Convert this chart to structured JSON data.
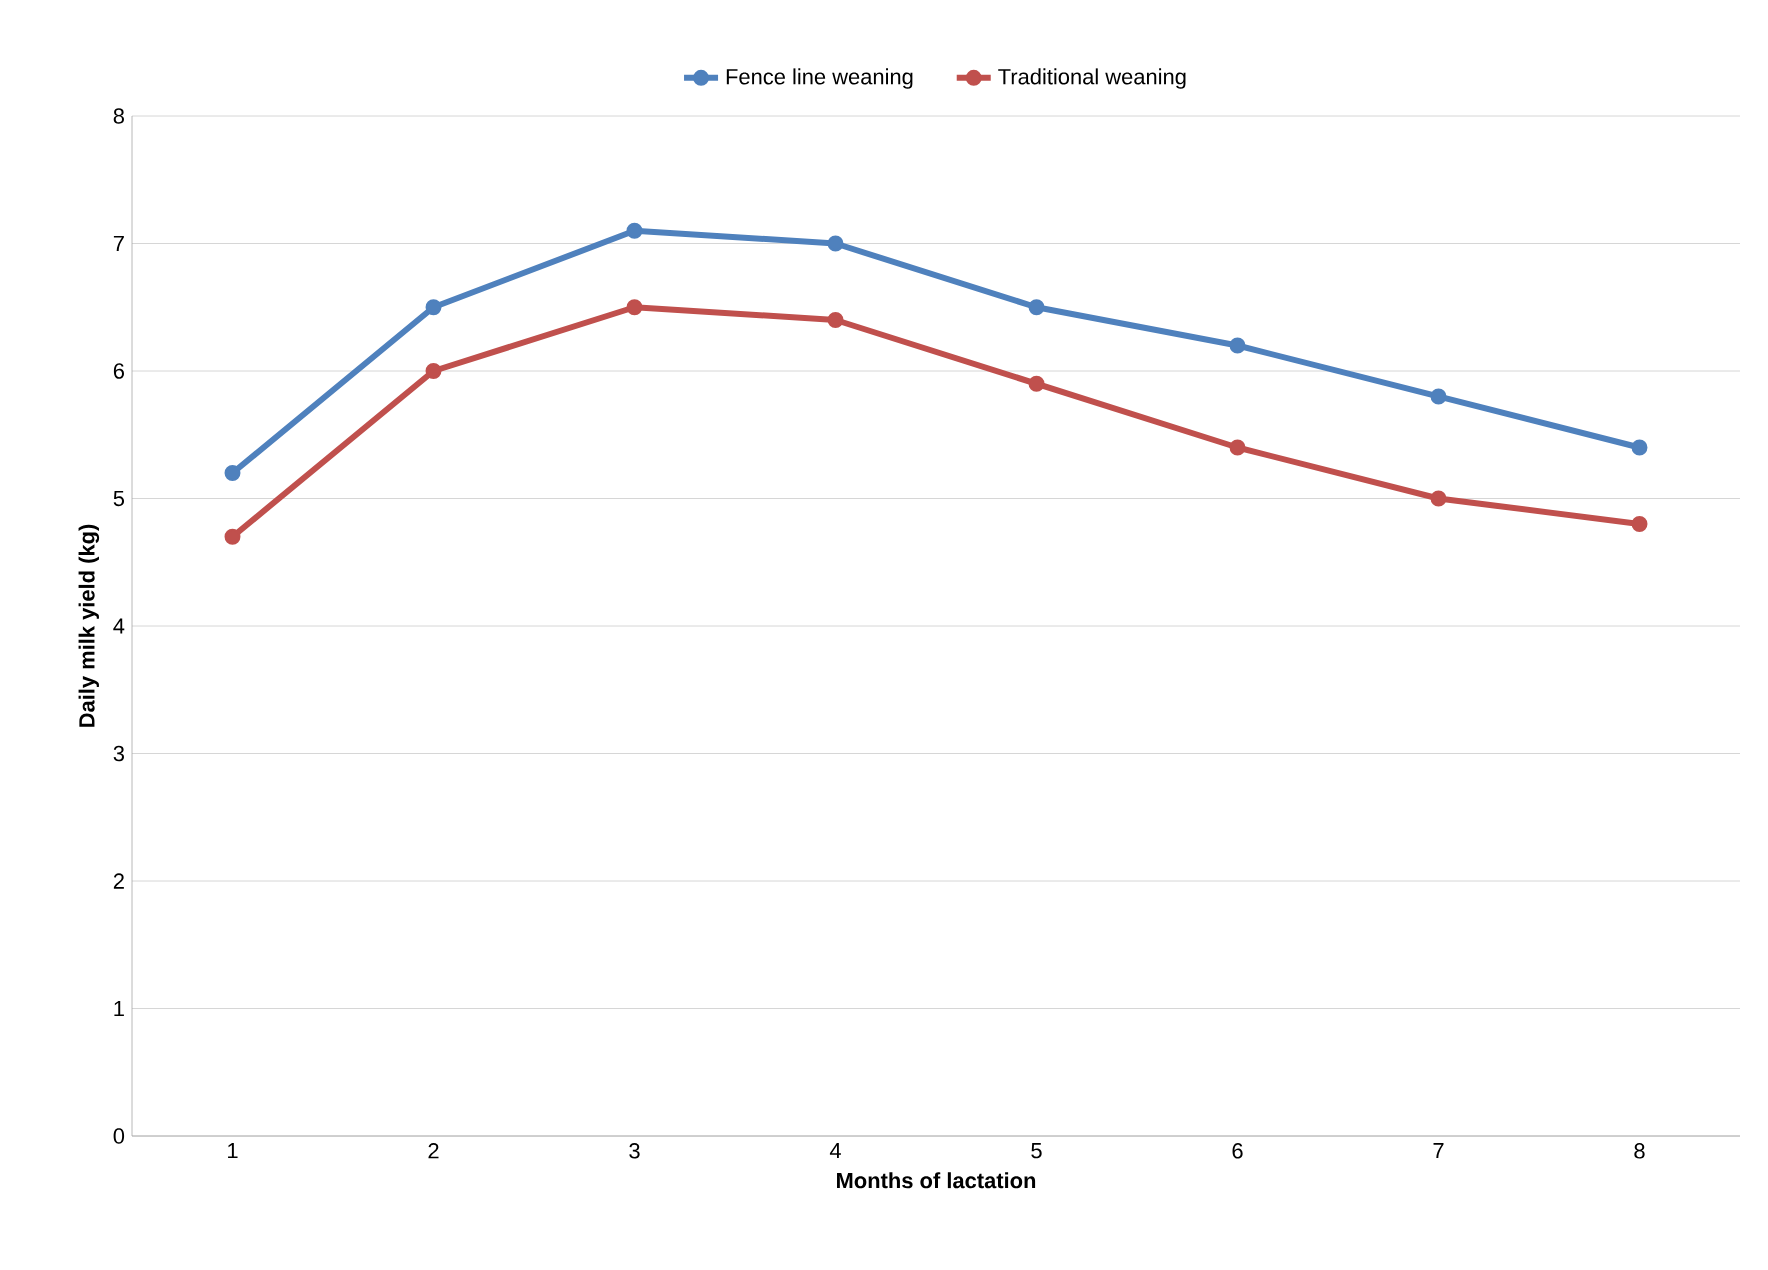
{
  "chart_data": {
    "type": "line",
    "xlabel": "Months of lactation",
    "ylabel": "Daily milk yield (kg)",
    "categories": [
      "1",
      "2",
      "3",
      "4",
      "5",
      "6",
      "7",
      "8"
    ],
    "series": [
      {
        "name": "Fence line weaning",
        "color": "#4f81bd",
        "values": [
          5.2,
          6.5,
          7.1,
          7.0,
          6.5,
          6.2,
          5.8,
          5.4
        ]
      },
      {
        "name": "Traditional weaning",
        "color": "#c0504d",
        "values": [
          4.7,
          6.0,
          6.5,
          6.4,
          5.9,
          5.4,
          5.0,
          4.8
        ]
      }
    ],
    "ylim": [
      0,
      8
    ],
    "yticks": [
      0,
      1,
      2,
      3,
      4,
      5,
      6,
      7,
      8
    ],
    "grid": "y",
    "legend": "top",
    "marker": "circle",
    "line_style": "solid"
  }
}
